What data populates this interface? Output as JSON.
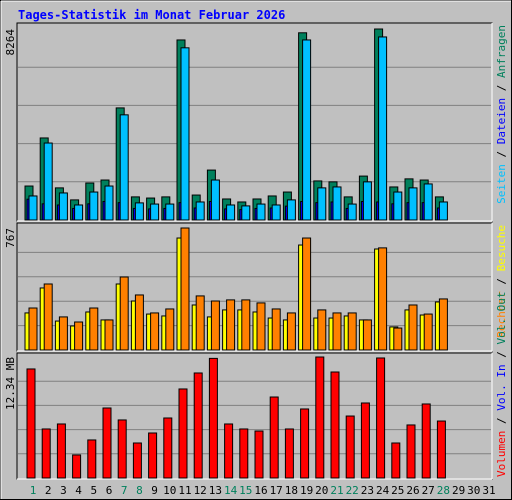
{
  "legend_separator": "/",
  "weekend_days": [
    1,
    7,
    8,
    14,
    15,
    21,
    22,
    28
  ],
  "weekend_color": "#00805c",
  "chart_data": [
    {
      "type": "bar",
      "title": "Tages-Statistik im Monat Februar 2026",
      "ylim": [
        0,
        8264
      ],
      "yticks": [
        8264
      ],
      "grid": true,
      "series": [
        {
          "name": "Anfragen",
          "color": "#00805c",
          "values": [
            1470,
            3550,
            1390,
            870,
            1600,
            1730,
            4850,
            1000,
            950,
            1000,
            7790,
            1080,
            2160,
            910,
            780,
            910,
            1040,
            1210,
            8100,
            1690,
            1650,
            1000,
            1900,
            8264,
            1430,
            1780,
            1730,
            1000,
            null,
            null,
            null
          ]
        },
        {
          "name": "Dateien",
          "color": "#0000ff",
          "values": [
            900,
            700,
            650,
            500,
            700,
            800,
            750,
            500,
            480,
            500,
            750,
            520,
            800,
            480,
            450,
            500,
            520,
            600,
            800,
            750,
            780,
            500,
            800,
            780,
            700,
            750,
            750,
            520,
            null,
            null,
            null
          ]
        },
        {
          "name": "Seiten",
          "color": "#00c0ff",
          "values": [
            1040,
            3330,
            1170,
            650,
            1210,
            1470,
            4550,
            740,
            690,
            690,
            7450,
            780,
            1730,
            650,
            610,
            690,
            650,
            870,
            7790,
            1390,
            1430,
            690,
            1650,
            7920,
            1210,
            1390,
            1560,
            780,
            null,
            null,
            null
          ]
        }
      ]
    },
    {
      "type": "bar",
      "ylim": [
        0,
        767
      ],
      "yticks": [
        767
      ],
      "grid": true,
      "series": [
        {
          "name": "Besuche",
          "color": "#ffff00",
          "values": [
            233,
            390,
            182,
            151,
            239,
            189,
            415,
            308,
            226,
            214,
            704,
            283,
            208,
            252,
            252,
            239,
            201,
            189,
            660,
            201,
            201,
            214,
            189,
            635,
            145,
            252,
            220,
            302,
            null,
            null,
            null
          ]
        },
        {
          "name": "Rechner",
          "color": "#ff8000",
          "values": [
            264,
            415,
            208,
            176,
            264,
            189,
            459,
            346,
            233,
            258,
            767,
            340,
            308,
            315,
            315,
            296,
            258,
            233,
            704,
            252,
            233,
            233,
            189,
            642,
            138,
            283,
            226,
            321,
            null,
            null,
            null
          ]
        }
      ]
    },
    {
      "type": "bar",
      "ylim": [
        0,
        12.34
      ],
      "yticks": [
        {
          "value": 12.34,
          "label": "12.34 MB"
        }
      ],
      "grid": true,
      "categories": [
        1,
        2,
        3,
        4,
        5,
        6,
        7,
        8,
        9,
        10,
        11,
        12,
        13,
        14,
        15,
        16,
        17,
        18,
        19,
        20,
        21,
        22,
        23,
        24,
        25,
        26,
        27,
        28,
        29,
        30,
        31
      ],
      "series": [
        {
          "name": "Volumen",
          "color": "#ff0000",
          "values": [
            11.12,
            5.0,
            5.51,
            2.35,
            3.88,
            7.14,
            5.92,
            3.57,
            4.59,
            6.12,
            9.08,
            10.71,
            12.2,
            5.51,
            5.0,
            4.79,
            8.26,
            5.0,
            7.04,
            12.34,
            10.81,
            6.32,
            7.65,
            12.24,
            3.57,
            5.41,
            7.55,
            5.81,
            null,
            null,
            null
          ]
        },
        {
          "name": "Vol. In",
          "color": "#0000ff",
          "values": [
            null,
            null,
            null,
            null,
            null,
            null,
            null,
            null,
            null,
            null,
            null,
            null,
            null,
            null,
            null,
            null,
            null,
            null,
            null,
            null,
            null,
            null,
            null,
            null,
            null,
            null,
            null,
            null,
            null,
            null,
            null
          ]
        },
        {
          "name": "Vol. Out",
          "color": "#00805c",
          "values": [
            null,
            null,
            null,
            null,
            null,
            null,
            null,
            null,
            null,
            null,
            null,
            null,
            null,
            null,
            null,
            null,
            null,
            null,
            null,
            null,
            null,
            null,
            null,
            null,
            null,
            null,
            null,
            null,
            null,
            null,
            null
          ]
        }
      ]
    }
  ]
}
